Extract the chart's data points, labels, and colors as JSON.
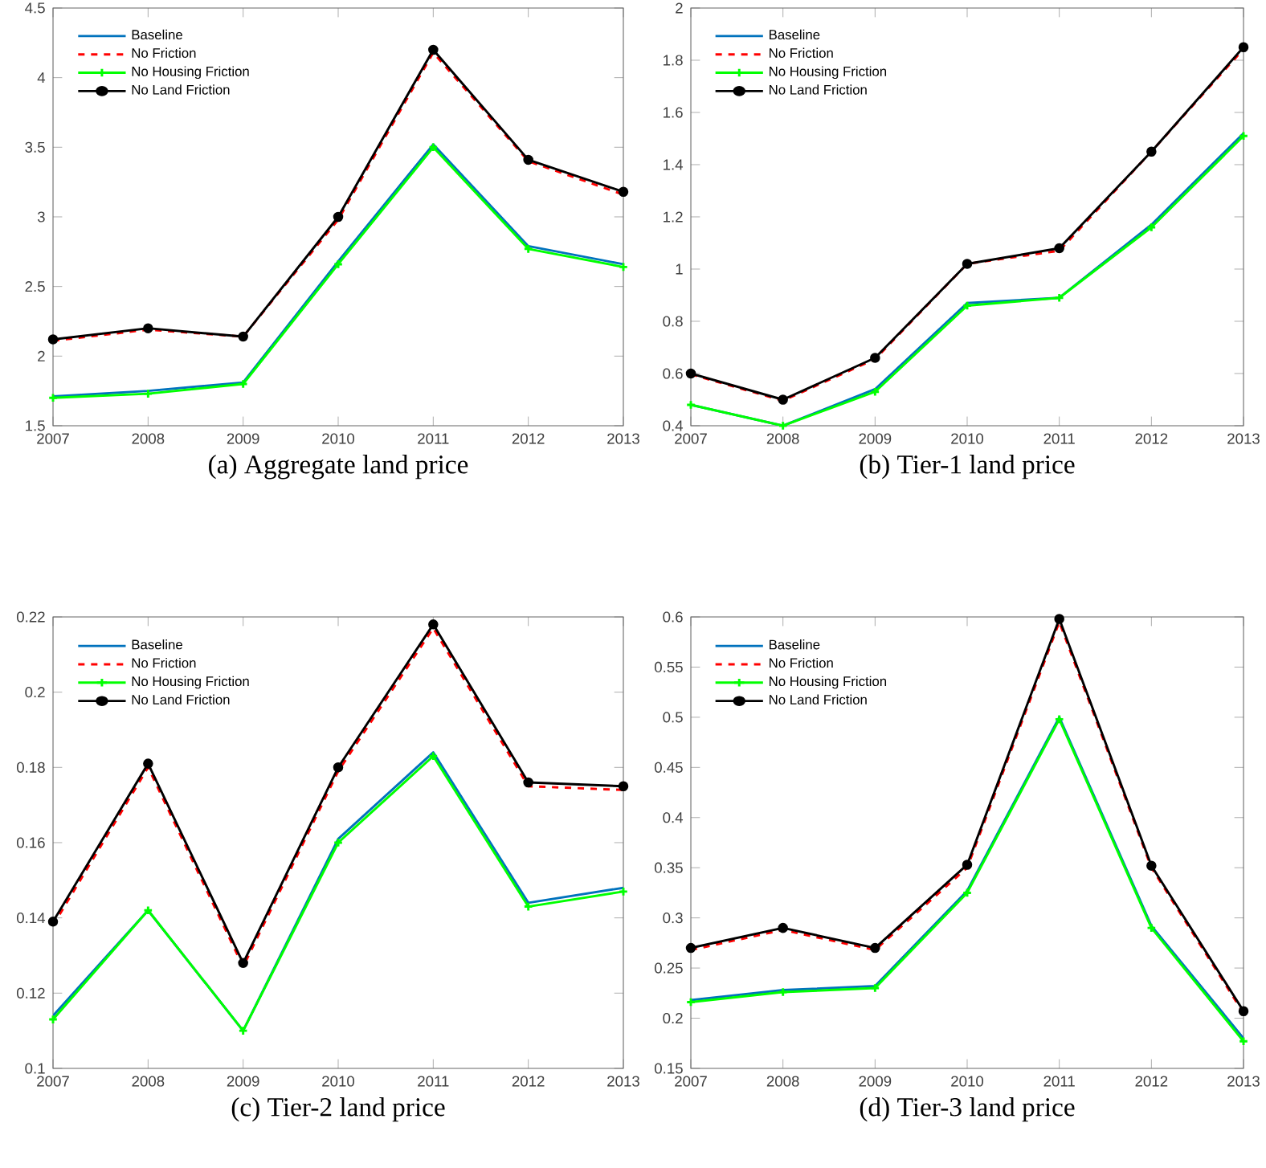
{
  "chart_data": [
    {
      "type": "line",
      "title": "(a) Aggregate land price",
      "x": [
        2007,
        2008,
        2009,
        2010,
        2011,
        2012,
        2013
      ],
      "xlim": [
        2007,
        2013
      ],
      "xticks": [
        2007,
        2008,
        2009,
        2010,
        2011,
        2012,
        2013
      ],
      "ylim": [
        1.5,
        4.5
      ],
      "yticks": [
        1.5,
        2,
        2.5,
        3,
        3.5,
        4,
        4.5
      ],
      "legend": "top left",
      "grid": false,
      "series": [
        {
          "name": "Baseline",
          "color": "#0072bd",
          "line_style": "solid",
          "marker": "none",
          "values": [
            1.71,
            1.75,
            1.81,
            2.68,
            3.52,
            2.79,
            2.66
          ]
        },
        {
          "name": "No Friction",
          "color": "#ff0000",
          "line_style": "dashed",
          "marker": "none",
          "values": [
            2.11,
            2.19,
            2.14,
            2.98,
            4.18,
            3.4,
            3.16
          ]
        },
        {
          "name": "No Housing Friction",
          "color": "#00ff00",
          "line_style": "solid",
          "marker": "cross",
          "values": [
            1.7,
            1.73,
            1.8,
            2.66,
            3.5,
            2.77,
            2.64
          ]
        },
        {
          "name": "No Land Friction",
          "color": "#000000",
          "line_style": "solid",
          "marker": "circle",
          "values": [
            2.12,
            2.2,
            2.14,
            3.0,
            4.2,
            3.41,
            3.18
          ]
        }
      ]
    },
    {
      "type": "line",
      "title": "(b) Tier-1 land price",
      "x": [
        2007,
        2008,
        2009,
        2010,
        2011,
        2012,
        2013
      ],
      "xlim": [
        2007,
        2013
      ],
      "xticks": [
        2007,
        2008,
        2009,
        2010,
        2011,
        2012,
        2013
      ],
      "ylim": [
        0.4,
        2
      ],
      "yticks": [
        0.4,
        0.6,
        0.8,
        1,
        1.2,
        1.4,
        1.6,
        1.8,
        2
      ],
      "legend": "top left",
      "grid": false,
      "series": [
        {
          "name": "Baseline",
          "color": "#0072bd",
          "line_style": "solid",
          "marker": "none",
          "values": [
            0.48,
            0.4,
            0.54,
            0.87,
            0.89,
            1.17,
            1.52
          ]
        },
        {
          "name": "No Friction",
          "color": "#ff0000",
          "line_style": "dashed",
          "marker": "none",
          "values": [
            0.597,
            0.496,
            0.655,
            1.02,
            1.07,
            1.45,
            1.843
          ]
        },
        {
          "name": "No Housing Friction",
          "color": "#00ff00",
          "line_style": "solid",
          "marker": "cross",
          "values": [
            0.48,
            0.4,
            0.53,
            0.86,
            0.89,
            1.16,
            1.51
          ]
        },
        {
          "name": "No Land Friction",
          "color": "#000000",
          "line_style": "solid",
          "marker": "circle",
          "values": [
            0.6,
            0.5,
            0.66,
            1.02,
            1.08,
            1.45,
            1.85
          ]
        }
      ]
    },
    {
      "type": "line",
      "title": "(c) Tier-2 land price",
      "x": [
        2007,
        2008,
        2009,
        2010,
        2011,
        2012,
        2013
      ],
      "xlim": [
        2007,
        2013
      ],
      "xticks": [
        2007,
        2008,
        2009,
        2010,
        2011,
        2012,
        2013
      ],
      "ylim": [
        0.1,
        0.22
      ],
      "yticks": [
        0.1,
        0.12,
        0.14,
        0.16,
        0.18,
        0.2,
        0.22
      ],
      "legend": "top left",
      "grid": false,
      "series": [
        {
          "name": "Baseline",
          "color": "#0072bd",
          "line_style": "solid",
          "marker": "none",
          "values": [
            0.114,
            0.142,
            0.11,
            0.161,
            0.184,
            0.144,
            0.148
          ]
        },
        {
          "name": "No Friction",
          "color": "#ff0000",
          "line_style": "dashed",
          "marker": "none",
          "values": [
            0.138,
            0.18,
            0.127,
            0.179,
            0.217,
            0.175,
            0.174
          ]
        },
        {
          "name": "No Housing Friction",
          "color": "#00ff00",
          "line_style": "solid",
          "marker": "cross",
          "values": [
            0.113,
            0.142,
            0.11,
            0.16,
            0.183,
            0.143,
            0.147
          ]
        },
        {
          "name": "No Land Friction",
          "color": "#000000",
          "line_style": "solid",
          "marker": "circle",
          "values": [
            0.139,
            0.181,
            0.128,
            0.18,
            0.218,
            0.176,
            0.175
          ]
        }
      ]
    },
    {
      "type": "line",
      "title": "(d) Tier-3 land price",
      "x": [
        2007,
        2008,
        2009,
        2010,
        2011,
        2012,
        2013
      ],
      "xlim": [
        2007,
        2013
      ],
      "xticks": [
        2007,
        2008,
        2009,
        2010,
        2011,
        2012,
        2013
      ],
      "ylim": [
        0.15,
        0.6
      ],
      "yticks": [
        0.15,
        0.2,
        0.25,
        0.3,
        0.35,
        0.4,
        0.45,
        0.5,
        0.55,
        0.6
      ],
      "legend": "top left",
      "grid": false,
      "series": [
        {
          "name": "Baseline",
          "color": "#0072bd",
          "line_style": "solid",
          "marker": "none",
          "values": [
            0.218,
            0.228,
            0.232,
            0.327,
            0.5,
            0.292,
            0.18
          ]
        },
        {
          "name": "No Friction",
          "color": "#ff0000",
          "line_style": "dashed",
          "marker": "none",
          "values": [
            0.268,
            0.288,
            0.268,
            0.35,
            0.595,
            0.35,
            0.205
          ]
        },
        {
          "name": "No Housing Friction",
          "color": "#00ff00",
          "line_style": "solid",
          "marker": "cross",
          "values": [
            0.216,
            0.226,
            0.23,
            0.325,
            0.498,
            0.29,
            0.177
          ]
        },
        {
          "name": "No Land Friction",
          "color": "#000000",
          "line_style": "solid",
          "marker": "circle",
          "values": [
            0.27,
            0.29,
            0.27,
            0.353,
            0.598,
            0.352,
            0.207
          ]
        }
      ]
    }
  ]
}
